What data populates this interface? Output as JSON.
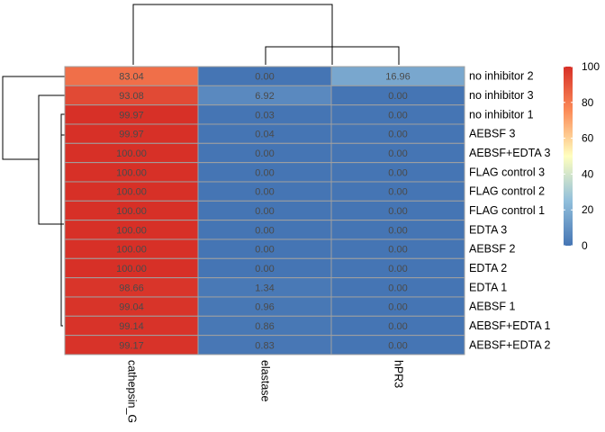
{
  "chart_data": {
    "type": "heatmap",
    "title": "",
    "columns": [
      "cathepsin_G",
      "elastase",
      "hPR3"
    ],
    "rows": [
      "no inhibitor 2",
      "no inhibitor 3",
      "no inhibitor 1",
      "AEBSF 3",
      "AEBSF+EDTA 3",
      "FLAG control 3",
      "FLAG control 2",
      "FLAG control 1",
      "EDTA 3",
      "AEBSF 2",
      "EDTA 2",
      "EDTA 1",
      "AEBSF 1",
      "AEBSF+EDTA 1",
      "AEBSF+EDTA 2"
    ],
    "values": [
      [
        83.04,
        0.0,
        16.96
      ],
      [
        93.08,
        6.92,
        0.0
      ],
      [
        99.97,
        0.03,
        0.0
      ],
      [
        99.97,
        0.04,
        0.0
      ],
      [
        100.0,
        0.0,
        0.0
      ],
      [
        100.0,
        0.0,
        0.0
      ],
      [
        100.0,
        0.0,
        0.0
      ],
      [
        100.0,
        0.0,
        0.0
      ],
      [
        100.0,
        0.0,
        0.0
      ],
      [
        100.0,
        0.0,
        0.0
      ],
      [
        100.0,
        0.0,
        0.0
      ],
      [
        98.66,
        1.34,
        0.0
      ],
      [
        99.04,
        0.96,
        0.0
      ],
      [
        99.14,
        0.86,
        0.0
      ],
      [
        99.17,
        0.83,
        0.0
      ]
    ],
    "value_labels": [
      [
        "83.04",
        "0.00",
        "16.96"
      ],
      [
        "93.08",
        "6.92",
        "0.00"
      ],
      [
        "99.97",
        "0.03",
        "0.00"
      ],
      [
        "99.97",
        "0.04",
        "0.00"
      ],
      [
        "100.00",
        "0.00",
        "0.00"
      ],
      [
        "100.00",
        "0.00",
        "0.00"
      ],
      [
        "100.00",
        "0.00",
        "0.00"
      ],
      [
        "100.00",
        "0.00",
        "0.00"
      ],
      [
        "100.00",
        "0.00",
        "0.00"
      ],
      [
        "100.00",
        "0.00",
        "0.00"
      ],
      [
        "100.00",
        "0.00",
        "0.00"
      ],
      [
        "98.66",
        "1.34",
        "0.00"
      ],
      [
        "99.04",
        "0.96",
        "0.00"
      ],
      [
        "99.14",
        "0.86",
        "0.00"
      ],
      [
        "99.17",
        "0.83",
        "0.00"
      ]
    ],
    "color_scale": {
      "range": [
        0,
        100
      ],
      "ticks": [
        "0",
        "20",
        "40",
        "60",
        "80",
        "100"
      ],
      "stops": [
        "#4575b4",
        "#91bfdb",
        "#ffffbf",
        "#fc8d59",
        "#d73027"
      ],
      "legend_position": "right"
    },
    "cell_border_color": "#a0a0a0",
    "dendrograms": [
      "column dendrogram on top",
      "row dendrogram on left"
    ]
  }
}
